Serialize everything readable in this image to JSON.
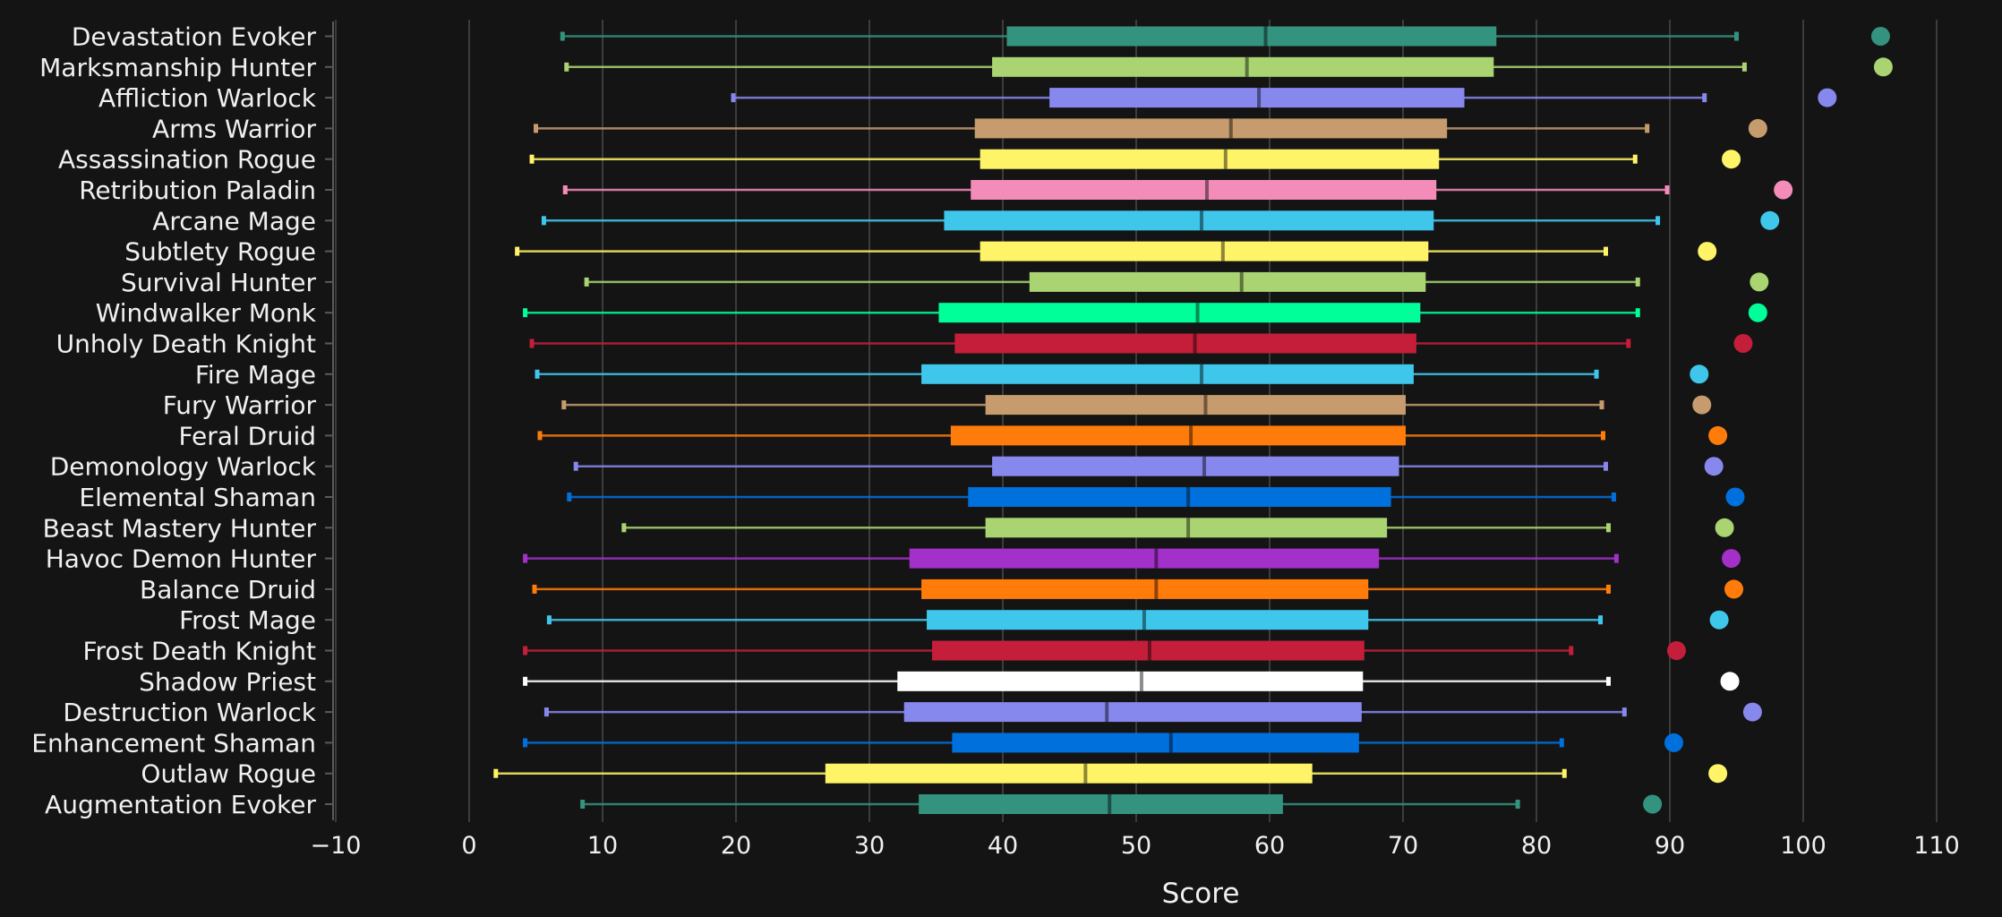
{
  "chart_data": {
    "type": "boxplot",
    "xlabel": "Score",
    "xlim": [
      -10,
      110
    ],
    "xticks": [
      -10,
      0,
      10,
      20,
      30,
      40,
      50,
      60,
      70,
      80,
      90,
      100,
      110
    ],
    "grid": true,
    "categories": [
      {
        "name": "Devastation Evoker",
        "color": "#33937f",
        "min": 7,
        "q1": 40.3,
        "median": 59.7,
        "q3": 77,
        "max": 95,
        "outlier": 105.8
      },
      {
        "name": "Marksmanship Hunter",
        "color": "#aad372",
        "min": 7.3,
        "q1": 39.2,
        "median": 58.3,
        "q3": 76.8,
        "max": 95.6,
        "outlier": 106
      },
      {
        "name": "Affliction Warlock",
        "color": "#8788ee",
        "min": 19.8,
        "q1": 43.5,
        "median": 59.2,
        "q3": 74.6,
        "max": 92.6,
        "outlier": 101.8
      },
      {
        "name": "Arms Warrior",
        "color": "#c69b6d",
        "min": 5,
        "q1": 37.9,
        "median": 57.1,
        "q3": 73.3,
        "max": 88.3,
        "outlier": 96.6
      },
      {
        "name": "Assassination Rogue",
        "color": "#fff468",
        "min": 4.7,
        "q1": 38.3,
        "median": 56.7,
        "q3": 72.7,
        "max": 87.4,
        "outlier": 94.6
      },
      {
        "name": "Retribution Paladin",
        "color": "#f48cba",
        "min": 7.2,
        "q1": 37.6,
        "median": 55.3,
        "q3": 72.5,
        "max": 89.8,
        "outlier": 98.5
      },
      {
        "name": "Arcane Mage",
        "color": "#3fc7eb",
        "min": 5.6,
        "q1": 35.6,
        "median": 54.9,
        "q3": 72.3,
        "max": 89.1,
        "outlier": 97.5
      },
      {
        "name": "Subtlety Rogue",
        "color": "#fff468",
        "min": 3.6,
        "q1": 38.3,
        "median": 56.5,
        "q3": 71.9,
        "max": 85.2,
        "outlier": 92.8
      },
      {
        "name": "Survival Hunter",
        "color": "#aad372",
        "min": 8.8,
        "q1": 42,
        "median": 57.9,
        "q3": 71.7,
        "max": 87.6,
        "outlier": 96.7
      },
      {
        "name": "Windwalker Monk",
        "color": "#00ff98",
        "min": 4.2,
        "q1": 35.2,
        "median": 54.6,
        "q3": 71.3,
        "max": 87.6,
        "outlier": 96.6
      },
      {
        "name": "Unholy Death Knight",
        "color": "#c41e3a",
        "min": 4.7,
        "q1": 36.4,
        "median": 54.4,
        "q3": 71,
        "max": 86.9,
        "outlier": 95.5
      },
      {
        "name": "Fire Mage",
        "color": "#3fc7eb",
        "min": 5.1,
        "q1": 33.9,
        "median": 54.9,
        "q3": 70.8,
        "max": 84.5,
        "outlier": 92.2
      },
      {
        "name": "Fury Warrior",
        "color": "#c69b6d",
        "min": 7.1,
        "q1": 38.7,
        "median": 55.2,
        "q3": 70.2,
        "max": 84.9,
        "outlier": 92.4
      },
      {
        "name": "Feral Druid",
        "color": "#ff7c0a",
        "min": 5.3,
        "q1": 36.1,
        "median": 54.1,
        "q3": 70.2,
        "max": 85,
        "outlier": 93.6
      },
      {
        "name": "Demonology Warlock",
        "color": "#8788ee",
        "min": 8,
        "q1": 39.2,
        "median": 55.1,
        "q3": 69.7,
        "max": 85.2,
        "outlier": 93.3
      },
      {
        "name": "Elemental Shaman",
        "color": "#0070dd",
        "min": 7.5,
        "q1": 37.4,
        "median": 53.9,
        "q3": 69.1,
        "max": 85.8,
        "outlier": 94.9
      },
      {
        "name": "Beast Mastery Hunter",
        "color": "#aad372",
        "min": 11.6,
        "q1": 38.7,
        "median": 53.9,
        "q3": 68.8,
        "max": 85.4,
        "outlier": 94.1
      },
      {
        "name": "Havoc Demon Hunter",
        "color": "#a330c9",
        "min": 4.2,
        "q1": 33,
        "median": 51.5,
        "q3": 68.2,
        "max": 86,
        "outlier": 94.6
      },
      {
        "name": "Balance Druid",
        "color": "#ff7c0a",
        "min": 4.9,
        "q1": 33.9,
        "median": 51.5,
        "q3": 67.4,
        "max": 85.4,
        "outlier": 94.8
      },
      {
        "name": "Frost Mage",
        "color": "#3fc7eb",
        "min": 6,
        "q1": 34.3,
        "median": 50.6,
        "q3": 67.4,
        "max": 84.8,
        "outlier": 93.7
      },
      {
        "name": "Frost Death Knight",
        "color": "#c41e3a",
        "min": 4.2,
        "q1": 34.7,
        "median": 51,
        "q3": 67.1,
        "max": 82.6,
        "outlier": 90.5
      },
      {
        "name": "Shadow Priest",
        "color": "#ffffff",
        "min": 4.2,
        "q1": 32.1,
        "median": 50.4,
        "q3": 67,
        "max": 85.4,
        "outlier": 94.5
      },
      {
        "name": "Destruction Warlock",
        "color": "#8788ee",
        "min": 5.8,
        "q1": 32.6,
        "median": 47.8,
        "q3": 66.9,
        "max": 86.6,
        "outlier": 96.2
      },
      {
        "name": "Enhancement Shaman",
        "color": "#0070dd",
        "min": 4.2,
        "q1": 36.2,
        "median": 52.6,
        "q3": 66.7,
        "max": 81.9,
        "outlier": 90.3
      },
      {
        "name": "Outlaw Rogue",
        "color": "#fff468",
        "min": 2,
        "q1": 26.7,
        "median": 46.2,
        "q3": 63.2,
        "max": 82.1,
        "outlier": 93.6
      },
      {
        "name": "Augmentation Evoker",
        "color": "#33937f",
        "min": 8.5,
        "q1": 33.7,
        "median": 48,
        "q3": 61,
        "max": 78.6,
        "outlier": 88.7
      }
    ]
  }
}
